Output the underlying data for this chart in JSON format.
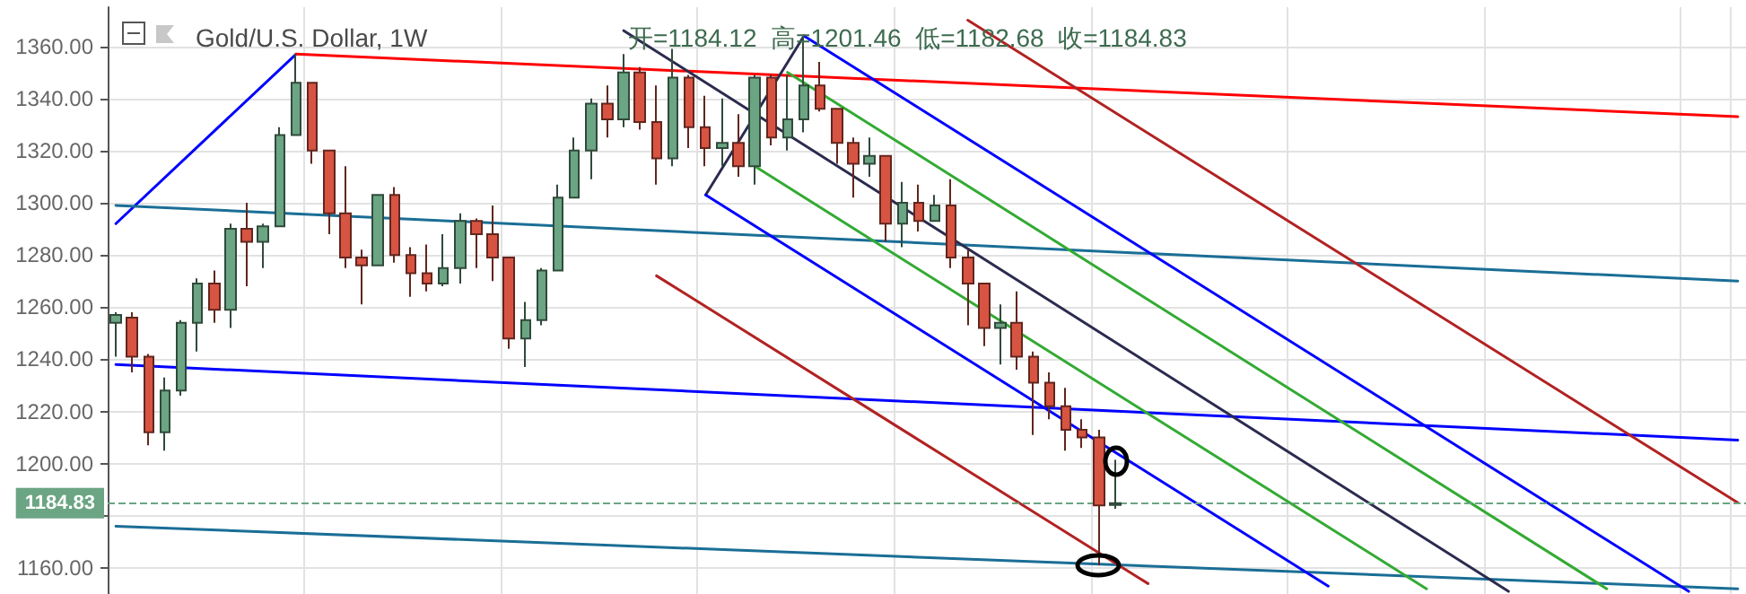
{
  "chart_data": {
    "type": "candlestick",
    "title": "Gold/U.S. Dollar, 1W",
    "subtitle": "开=1184.12  高=1201.46  低=1182.68  收=1184.83",
    "categories": [
      null,
      null,
      null,
      null,
      null,
      null,
      null,
      null,
      null,
      null,
      null,
      null,
      null,
      null,
      null,
      null,
      null,
      null,
      null,
      null,
      null,
      null,
      null,
      null,
      null,
      null,
      null,
      null,
      null,
      null,
      null,
      null,
      null,
      null,
      null,
      null,
      null,
      null,
      null,
      null,
      null,
      null,
      null,
      null,
      null,
      null,
      null,
      null,
      null,
      null,
      null,
      null,
      null,
      null,
      null,
      null,
      null,
      null,
      null,
      null,
      null,
      null,
      null,
      null,
      null,
      null,
      null,
      null,
      null,
      null,
      null,
      null,
      null,
      null,
      null,
      null,
      null,
      null,
      null,
      null,
      null,
      null,
      null,
      null,
      null,
      null,
      null,
      null,
      null,
      null,
      null,
      null,
      null,
      null,
      null,
      null,
      null,
      null,
      null,
      null
    ],
    "ohlc": [
      [
        1254,
        1258,
        1241,
        1257
      ],
      [
        1256,
        1258,
        1235,
        1241
      ],
      [
        1241,
        1242,
        1207,
        1212
      ],
      [
        1212,
        1233,
        1205,
        1228
      ],
      [
        1228,
        1255,
        1226,
        1254
      ],
      [
        1254,
        1271,
        1243,
        1269
      ],
      [
        1269,
        1274,
        1254,
        1259
      ],
      [
        1259,
        1292,
        1252,
        1290
      ],
      [
        1290,
        1300,
        1268,
        1285
      ],
      [
        1285,
        1292,
        1275,
        1291
      ],
      [
        1291,
        1329,
        1291,
        1326
      ],
      [
        1326,
        1357,
        1326,
        1346
      ],
      [
        1346,
        1346,
        1315,
        1320
      ],
      [
        1320,
        1320,
        1288,
        1296
      ],
      [
        1296,
        1314,
        1275,
        1279
      ],
      [
        1279,
        1282,
        1261,
        1276
      ],
      [
        1276,
        1303,
        1276,
        1303
      ],
      [
        1303,
        1306,
        1277,
        1280
      ],
      [
        1280,
        1283,
        1264,
        1273
      ],
      [
        1273,
        1284,
        1266,
        1269
      ],
      [
        1269,
        1288,
        1268,
        1275
      ],
      [
        1275,
        1296,
        1269,
        1293
      ],
      [
        1293,
        1294,
        1275,
        1288
      ],
      [
        1288,
        1299,
        1270,
        1279
      ],
      [
        1279,
        1279,
        1244,
        1248
      ],
      [
        1248,
        1262,
        1237,
        1255
      ],
      [
        1255,
        1275,
        1253,
        1274
      ],
      [
        1274,
        1307,
        1274,
        1302
      ],
      [
        1302,
        1325,
        1302,
        1320
      ],
      [
        1320,
        1340,
        1309,
        1338
      ],
      [
        1338,
        1345,
        1325,
        1332
      ],
      [
        1332,
        1357,
        1329,
        1350
      ],
      [
        1350,
        1352,
        1328,
        1331
      ],
      [
        1331,
        1345,
        1307,
        1317
      ],
      [
        1317,
        1359,
        1314,
        1348
      ],
      [
        1348,
        1349,
        1321,
        1329
      ],
      [
        1329,
        1341,
        1314,
        1321
      ],
      [
        1321,
        1340,
        1314,
        1323
      ],
      [
        1323,
        1334,
        1310,
        1314
      ],
      [
        1314,
        1349,
        1307,
        1348
      ],
      [
        1348,
        1349,
        1322,
        1325
      ],
      [
        1325,
        1349,
        1320,
        1332
      ],
      [
        1332,
        1364,
        1327,
        1345
      ],
      [
        1345,
        1354,
        1335,
        1336
      ],
      [
        1336,
        1336,
        1315,
        1323
      ],
      [
        1323,
        1325,
        1302,
        1315
      ],
      [
        1315,
        1325,
        1310,
        1318
      ],
      [
        1318,
        1318,
        1285,
        1292
      ],
      [
        1292,
        1308,
        1283,
        1300
      ],
      [
        1300,
        1307,
        1289,
        1293
      ],
      [
        1293,
        1303,
        1293,
        1299
      ],
      [
        1299,
        1309,
        1275,
        1279
      ],
      [
        1279,
        1282,
        1253,
        1269
      ],
      [
        1269,
        1269,
        1245,
        1252
      ],
      [
        1252,
        1261,
        1238,
        1254
      ],
      [
        1254,
        1266,
        1236,
        1241
      ],
      [
        1241,
        1243,
        1211,
        1231
      ],
      [
        1231,
        1235,
        1217,
        1222
      ],
      [
        1222,
        1229,
        1205,
        1213
      ],
      [
        1213,
        1217,
        1206,
        1210
      ],
      [
        1210,
        1213,
        1161,
        1184
      ],
      [
        1184.12,
        1201.46,
        1182.68,
        1184.83
      ],
      null,
      null,
      null,
      null,
      null,
      null,
      null,
      null,
      null,
      null,
      null,
      null,
      null,
      null,
      null,
      null,
      null,
      null,
      null,
      null,
      null,
      null,
      null,
      null,
      null,
      null,
      null,
      null,
      null,
      null,
      null,
      null,
      null,
      null,
      null,
      null,
      null,
      null
    ],
    "colors": [
      "#6ba583",
      "#d75442",
      "#d75442",
      "#6ba583",
      "#6ba583",
      "#6ba583",
      "#d75442",
      "#6ba583",
      "#d75442",
      "#6ba583",
      "#6ba583",
      "#6ba583",
      "#d75442",
      "#d75442",
      "#d75442",
      "#d75442",
      "#6ba583",
      "#d75442",
      "#d75442",
      "#d75442",
      "#6ba583",
      "#6ba583",
      "#d75442",
      "#d75442",
      "#d75442",
      "#6ba583",
      "#6ba583",
      "#6ba583",
      "#6ba583",
      "#6ba583",
      "#d75442",
      "#6ba583",
      "#d75442",
      "#d75442",
      "#6ba583",
      "#d75442",
      "#d75442",
      "#6ba583",
      "#d75442",
      "#6ba583",
      "#d75442",
      "#6ba583",
      "#6ba583",
      "#d75442",
      "#d75442",
      "#d75442",
      "#6ba583",
      "#d75442",
      "#6ba583",
      "#d75442",
      "#6ba583",
      "#d75442",
      "#d75442",
      "#d75442",
      "#6ba583",
      "#d75442",
      "#d75442",
      "#d75442",
      "#d75442",
      "#d75442",
      "#d75442",
      "#6ba583",
      null,
      null,
      null,
      null,
      null,
      null,
      null,
      null,
      null,
      null,
      null,
      null,
      null,
      null,
      null,
      null,
      null,
      null,
      null,
      null,
      null,
      null,
      null,
      null,
      null,
      null,
      null,
      null,
      null,
      null,
      null,
      null,
      null,
      null,
      null,
      null,
      null,
      null
    ],
    "series": [
      {
        "type": "line",
        "color": "#0000ff",
        "values": [
          1292,
          null,
          null,
          null,
          null,
          null,
          null,
          null,
          null,
          null,
          null,
          1357,
          null,
          null,
          null,
          null,
          null,
          null,
          null,
          null,
          null,
          null,
          null,
          null,
          null,
          null,
          null,
          null,
          null,
          null,
          null,
          null,
          null,
          null,
          null,
          null,
          null,
          null,
          null,
          null,
          null,
          null,
          null,
          null,
          null,
          null,
          null,
          null,
          null,
          null,
          null,
          null,
          null,
          null,
          null,
          null,
          null,
          null,
          null,
          null,
          null,
          null,
          null,
          null,
          null,
          null,
          null,
          null,
          null,
          null,
          null,
          null,
          null,
          null,
          null,
          null,
          null,
          null,
          null,
          null,
          null,
          null,
          null,
          null,
          null,
          null,
          null,
          null,
          null,
          null,
          null,
          null,
          null,
          null,
          null,
          null,
          null,
          null,
          null,
          null
        ]
      },
      {
        "type": "line",
        "color": "#ff0000",
        "values": [
          null,
          null,
          null,
          null,
          null,
          null,
          null,
          null,
          null,
          null,
          null,
          1357,
          null,
          null,
          null,
          null,
          null,
          null,
          null,
          null,
          null,
          null,
          null,
          null,
          null,
          null,
          null,
          null,
          null,
          null,
          null,
          null,
          null,
          null,
          null,
          null,
          null,
          null,
          null,
          null,
          null,
          null,
          null,
          null,
          null,
          null,
          null,
          null,
          null,
          null,
          null,
          null,
          null,
          null,
          null,
          null,
          null,
          null,
          null,
          null,
          null,
          null,
          null,
          null,
          null,
          null,
          null,
          null,
          null,
          null,
          null,
          null,
          null,
          null,
          null,
          null,
          null,
          null,
          null,
          null,
          null,
          null,
          null,
          null,
          null,
          null,
          null,
          null,
          null,
          null,
          null,
          null,
          null,
          null,
          null,
          null,
          null,
          null,
          null,
          1333
        ]
      },
      {
        "type": "line",
        "color": "#1a6e96",
        "values": [
          1299,
          null,
          null,
          null,
          null,
          null,
          null,
          null,
          null,
          null,
          null,
          null,
          null,
          null,
          null,
          null,
          null,
          null,
          null,
          null,
          null,
          null,
          null,
          null,
          null,
          null,
          null,
          null,
          null,
          null,
          null,
          null,
          null,
          null,
          null,
          null,
          null,
          null,
          null,
          null,
          null,
          null,
          null,
          null,
          null,
          null,
          null,
          null,
          null,
          null,
          null,
          null,
          null,
          null,
          null,
          null,
          null,
          null,
          null,
          null,
          null,
          null,
          null,
          null,
          null,
          null,
          null,
          null,
          null,
          null,
          null,
          null,
          null,
          null,
          null,
          null,
          null,
          null,
          null,
          null,
          null,
          null,
          null,
          null,
          null,
          null,
          null,
          null,
          null,
          null,
          null,
          null,
          null,
          null,
          null,
          null,
          null,
          null,
          null,
          1270
        ]
      },
      {
        "type": "line",
        "color": "#0000ff",
        "values": [
          1238,
          null,
          null,
          null,
          null,
          null,
          null,
          null,
          null,
          null,
          null,
          null,
          null,
          null,
          null,
          null,
          null,
          null,
          null,
          null,
          null,
          null,
          null,
          null,
          null,
          null,
          null,
          null,
          null,
          null,
          null,
          null,
          null,
          null,
          null,
          null,
          null,
          null,
          null,
          null,
          null,
          null,
          null,
          null,
          null,
          null,
          null,
          null,
          null,
          null,
          null,
          null,
          null,
          null,
          null,
          null,
          null,
          null,
          null,
          null,
          null,
          null,
          null,
          null,
          null,
          null,
          null,
          null,
          null,
          null,
          null,
          null,
          null,
          null,
          null,
          null,
          null,
          null,
          null,
          null,
          null,
          null,
          null,
          null,
          null,
          null,
          null,
          null,
          null,
          null,
          null,
          null,
          null,
          null,
          null,
          null,
          null,
          null,
          null,
          1209
        ]
      },
      {
        "type": "line",
        "color": "#1a6e96",
        "values": [
          1176,
          null,
          null,
          null,
          null,
          null,
          null,
          null,
          null,
          null,
          null,
          null,
          null,
          null,
          null,
          null,
          null,
          null,
          null,
          null,
          null,
          null,
          null,
          null,
          null,
          null,
          null,
          null,
          null,
          null,
          null,
          null,
          null,
          null,
          null,
          null,
          null,
          null,
          null,
          null,
          null,
          null,
          null,
          null,
          null,
          null,
          null,
          null,
          null,
          null,
          null,
          null,
          null,
          null,
          null,
          null,
          null,
          null,
          null,
          null,
          null,
          null,
          null,
          null,
          null,
          null,
          null,
          null,
          null,
          null,
          null,
          null,
          null,
          null,
          null,
          null,
          null,
          null,
          null,
          null,
          null,
          null,
          null,
          null,
          null,
          null,
          null,
          null,
          null,
          null,
          null,
          null,
          null,
          null,
          null,
          null,
          null,
          null,
          null,
          1152
        ]
      },
      {
        "type": "line",
        "color": "#2b2b4f",
        "values": [
          null,
          null,
          null,
          null,
          null,
          null,
          null,
          null,
          null,
          null,
          null,
          null,
          null,
          null,
          null,
          null,
          null,
          null,
          null,
          null,
          null,
          null,
          null,
          null,
          null,
          null,
          null,
          null,
          null,
          null,
          null,
          1366,
          null,
          null,
          null,
          null,
          null,
          null,
          null,
          null,
          null,
          null,
          null,
          null,
          null,
          null,
          null,
          null,
          null,
          null,
          null,
          null,
          null,
          null,
          null,
          null,
          null,
          null,
          null,
          null,
          null,
          null,
          null,
          null,
          null,
          null,
          null,
          null,
          null,
          null,
          null,
          null,
          null,
          null,
          null,
          null,
          null,
          null,
          null,
          null,
          null,
          null,
          null,
          null,
          null,
          1151,
          null,
          null,
          null,
          null,
          null,
          null,
          null,
          null,
          null,
          null,
          null,
          null,
          null,
          null
        ]
      },
      {
        "type": "line",
        "color": "#2b2b4f",
        "values": [
          null,
          null,
          null,
          null,
          null,
          null,
          null,
          null,
          null,
          null,
          null,
          null,
          null,
          null,
          null,
          null,
          null,
          null,
          null,
          null,
          null,
          null,
          null,
          null,
          null,
          null,
          null,
          null,
          null,
          null,
          null,
          null,
          null,
          null,
          null,
          null,
          1303,
          null,
          null,
          null,
          null,
          null,
          1364,
          null,
          null,
          null,
          null,
          null,
          null,
          null,
          null,
          null,
          null,
          null,
          null,
          null,
          null,
          null,
          null,
          null,
          null,
          null,
          null,
          null,
          null,
          null,
          null,
          null,
          null,
          null,
          null,
          null,
          null,
          null,
          null,
          null,
          null,
          null,
          null,
          null,
          null,
          null,
          null,
          null,
          null,
          null,
          null,
          null,
          null,
          null,
          null,
          null,
          null,
          null,
          null,
          null,
          null,
          null,
          null,
          null
        ]
      },
      {
        "type": "line",
        "color": "#0000ff",
        "values": [
          null,
          null,
          null,
          null,
          null,
          null,
          null,
          null,
          null,
          null,
          null,
          null,
          null,
          null,
          null,
          null,
          null,
          null,
          null,
          null,
          null,
          null,
          null,
          null,
          null,
          null,
          null,
          null,
          null,
          null,
          null,
          null,
          null,
          null,
          null,
          null,
          1303,
          null,
          null,
          null,
          null,
          null,
          null,
          null,
          null,
          null,
          null,
          null,
          null,
          null,
          null,
          null,
          null,
          null,
          null,
          null,
          null,
          null,
          null,
          null,
          null,
          null,
          null,
          null,
          null,
          null,
          null,
          null,
          null,
          null,
          null,
          null,
          null,
          null,
          1153,
          null,
          null,
          null,
          null,
          null,
          null,
          null,
          null,
          null,
          null,
          null,
          null,
          null,
          null,
          null,
          null,
          null,
          null,
          null,
          null,
          null,
          null,
          null,
          null,
          null
        ]
      },
      {
        "type": "line",
        "color": "#0000ff",
        "values": [
          null,
          null,
          null,
          null,
          null,
          null,
          null,
          null,
          null,
          null,
          null,
          null,
          null,
          null,
          null,
          null,
          null,
          null,
          null,
          null,
          null,
          null,
          null,
          null,
          null,
          null,
          null,
          null,
          null,
          null,
          null,
          null,
          null,
          null,
          null,
          null,
          null,
          null,
          null,
          null,
          null,
          null,
          1364,
          null,
          null,
          null,
          null,
          null,
          null,
          null,
          null,
          null,
          null,
          null,
          null,
          null,
          null,
          null,
          null,
          null,
          null,
          null,
          null,
          null,
          null,
          null,
          null,
          null,
          null,
          null,
          null,
          null,
          null,
          null,
          null,
          null,
          null,
          null,
          null,
          null,
          null,
          null,
          null,
          null,
          null,
          null,
          null,
          null,
          null,
          null,
          null,
          null,
          null,
          null,
          null,
          null,
          1151,
          null,
          null,
          null
        ]
      },
      {
        "type": "line",
        "color": "#33aa33",
        "values": [
          null,
          null,
          null,
          null,
          null,
          null,
          null,
          null,
          null,
          null,
          null,
          null,
          null,
          null,
          null,
          null,
          null,
          null,
          null,
          null,
          null,
          null,
          null,
          null,
          null,
          null,
          null,
          null,
          null,
          null,
          null,
          null,
          null,
          null,
          null,
          null,
          null,
          null,
          null,
          null,
          null,
          1350,
          null,
          null,
          null,
          null,
          null,
          null,
          null,
          null,
          null,
          null,
          null,
          null,
          null,
          null,
          null,
          null,
          null,
          null,
          null,
          null,
          null,
          null,
          null,
          null,
          null,
          null,
          null,
          null,
          null,
          null,
          null,
          null,
          null,
          null,
          null,
          null,
          null,
          null,
          null,
          null,
          null,
          null,
          null,
          null,
          null,
          null,
          null,
          null,
          null,
          1152,
          null,
          null,
          null,
          null,
          null,
          null,
          null,
          null
        ]
      },
      {
        "type": "line",
        "color": "#33aa33",
        "values": [
          null,
          null,
          null,
          null,
          null,
          null,
          null,
          null,
          null,
          null,
          null,
          null,
          null,
          null,
          null,
          null,
          null,
          null,
          null,
          null,
          null,
          null,
          null,
          null,
          null,
          null,
          null,
          null,
          null,
          null,
          null,
          null,
          null,
          null,
          null,
          null,
          null,
          null,
          null,
          1314,
          null,
          null,
          null,
          null,
          null,
          null,
          null,
          null,
          null,
          null,
          null,
          null,
          null,
          null,
          null,
          null,
          null,
          null,
          null,
          null,
          null,
          null,
          null,
          null,
          null,
          null,
          null,
          null,
          null,
          null,
          null,
          null,
          null,
          null,
          null,
          null,
          null,
          null,
          null,
          null,
          1152,
          null,
          null,
          null,
          null,
          null,
          null,
          null,
          null,
          null,
          null,
          null,
          null,
          null,
          null,
          null,
          null,
          null,
          null,
          null
        ]
      },
      {
        "type": "line",
        "color": "#b22222",
        "values": [
          null,
          null,
          null,
          null,
          null,
          null,
          null,
          null,
          null,
          null,
          null,
          null,
          null,
          null,
          null,
          null,
          null,
          null,
          null,
          null,
          null,
          null,
          null,
          null,
          null,
          null,
          null,
          null,
          null,
          null,
          null,
          null,
          null,
          1272,
          null,
          null,
          null,
          null,
          null,
          null,
          null,
          null,
          null,
          null,
          null,
          null,
          null,
          null,
          null,
          null,
          null,
          null,
          null,
          null,
          null,
          null,
          null,
          null,
          null,
          null,
          null,
          null,
          null,
          1154,
          null,
          null,
          null,
          null,
          null,
          null,
          null,
          null,
          null,
          null,
          null,
          null,
          null,
          null,
          null,
          null,
          null,
          null,
          null,
          null,
          null,
          null,
          null,
          null,
          null,
          null,
          null,
          null,
          null,
          null,
          null,
          null,
          null,
          null,
          null,
          null
        ]
      },
      {
        "type": "line",
        "color": "#b22222",
        "values": [
          null,
          null,
          null,
          null,
          null,
          null,
          null,
          null,
          null,
          null,
          null,
          null,
          null,
          null,
          null,
          null,
          null,
          null,
          null,
          null,
          null,
          null,
          null,
          null,
          null,
          null,
          null,
          null,
          null,
          null,
          null,
          null,
          null,
          null,
          null,
          null,
          null,
          null,
          null,
          null,
          null,
          null,
          null,
          null,
          null,
          null,
          null,
          null,
          null,
          null,
          null,
          null,
          1370,
          null,
          null,
          null,
          null,
          null,
          null,
          null,
          null,
          null,
          null,
          null,
          null,
          null,
          null,
          null,
          null,
          null,
          null,
          null,
          null,
          null,
          null,
          null,
          null,
          null,
          null,
          null,
          null,
          null,
          null,
          null,
          null,
          null,
          null,
          null,
          null,
          null,
          null,
          null,
          null,
          null,
          null,
          null,
          null,
          null,
          null,
          1185
        ]
      }
    ],
    "ylim": [
      1150,
      1375
    ],
    "yticks": [
      {
        "value": 1160,
        "label": "1160.00"
      },
      {
        "value": 1180,
        "label": null
      },
      {
        "value": 1200,
        "label": "1200.00"
      },
      {
        "value": 1220,
        "label": "1220.00"
      },
      {
        "value": 1240,
        "label": "1240.00"
      },
      {
        "value": 1260,
        "label": "1260.00"
      },
      {
        "value": 1280,
        "label": "1280.00"
      },
      {
        "value": 1300,
        "label": "1300.00"
      },
      {
        "value": 1320,
        "label": "1320.00"
      },
      {
        "value": 1340,
        "label": "1340.00"
      },
      {
        "value": 1360,
        "label": "1360.00"
      }
    ],
    "ref_lines": [
      {
        "axis": "y",
        "value": 1184.83,
        "label": "1184.83",
        "color": "#6ba583",
        "line_style": "dashed"
      }
    ],
    "grid": true,
    "tick_labels": "y"
  }
}
